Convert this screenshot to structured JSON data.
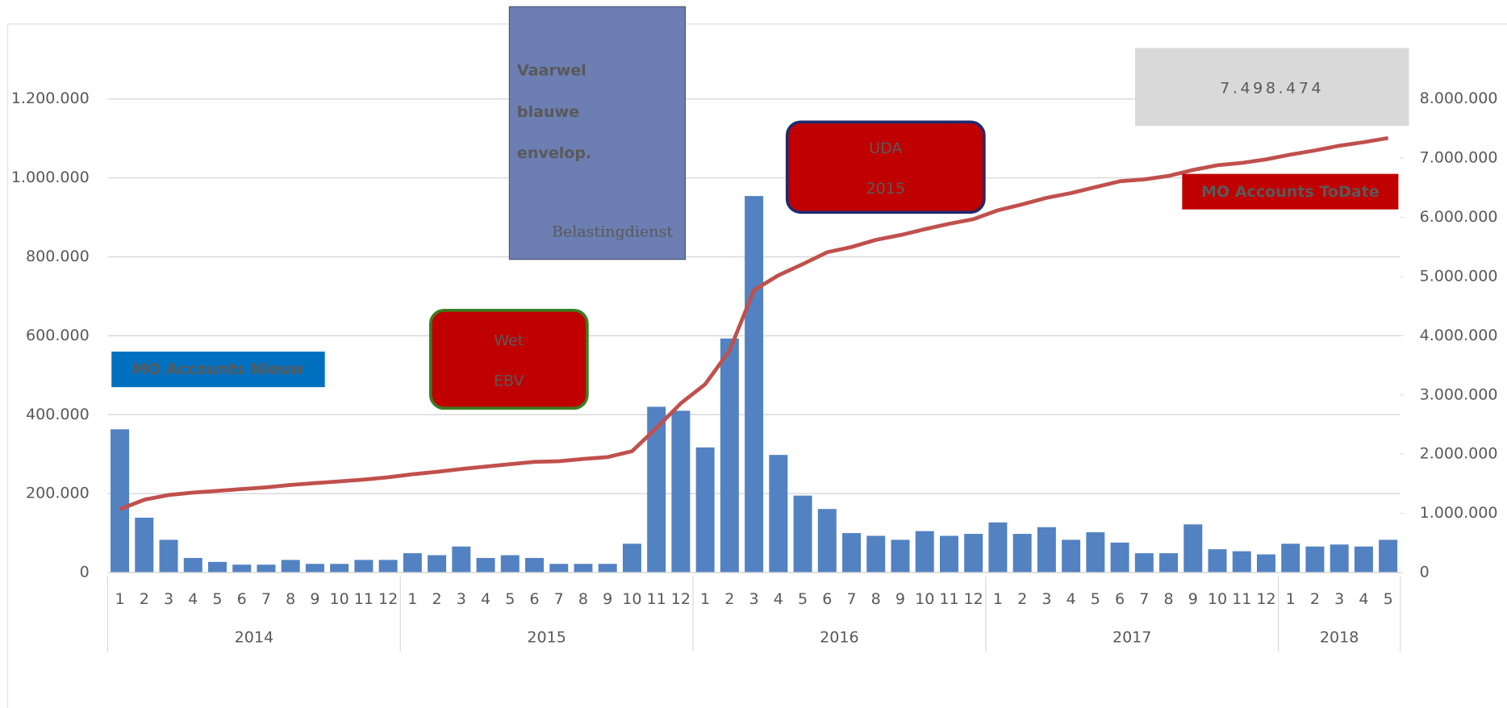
{
  "chart_data": {
    "type": "bar-line",
    "categories": [
      "1",
      "2",
      "3",
      "4",
      "5",
      "6",
      "7",
      "8",
      "9",
      "10",
      "11",
      "12",
      "1",
      "2",
      "3",
      "4",
      "5",
      "6",
      "7",
      "8",
      "9",
      "10",
      "11",
      "12",
      "1",
      "2",
      "3",
      "4",
      "5",
      "6",
      "7",
      "8",
      "9",
      "10",
      "11",
      "12",
      "1",
      "2",
      "3",
      "4",
      "5",
      "6",
      "7",
      "8",
      "9",
      "10",
      "11",
      "12",
      "1",
      "2",
      "3",
      "4",
      "5"
    ],
    "groups": [
      "2014",
      "2015",
      "2016",
      "2017",
      "2018"
    ],
    "series": [
      {
        "name": "MO Accounts Nieuw",
        "type": "bar",
        "color": "#5282c1",
        "label_color": "#0070c0",
        "values": [
          363000,
          139000,
          83000,
          37000,
          27000,
          20000,
          20000,
          32000,
          22000,
          22000,
          32000,
          32000,
          49000,
          44000,
          66000,
          37000,
          44000,
          37000,
          22000,
          22000,
          22000,
          73000,
          420000,
          410000,
          317000,
          593000,
          954000,
          298000,
          195000,
          161000,
          100000,
          93000,
          83000,
          105000,
          93000,
          98000,
          127000,
          98000,
          115000,
          83000,
          102000,
          76000,
          49000,
          49000,
          122000,
          59000,
          54000,
          46000,
          73000,
          66000,
          71000,
          66000,
          83000
        ]
      },
      {
        "name": "MO Accounts ToDate",
        "type": "line",
        "axis": "y2",
        "color": "#c0504d",
        "label_color": "#c00000",
        "values": [
          1070000,
          1230000,
          1310000,
          1350000,
          1380000,
          1410000,
          1440000,
          1480000,
          1510000,
          1540000,
          1570000,
          1610000,
          1660000,
          1700000,
          1750000,
          1790000,
          1830000,
          1870000,
          1880000,
          1920000,
          1950000,
          2050000,
          2440000,
          2860000,
          3180000,
          3750000,
          4770000,
          5020000,
          5210000,
          5410000,
          5500000,
          5620000,
          5700000,
          5800000,
          5890000,
          5970000,
          6120000,
          6220000,
          6330000,
          6410000,
          6510000,
          6610000,
          6640000,
          6700000,
          6800000,
          6880000,
          6920000,
          6980000,
          7060000,
          7130000,
          7210000,
          7270000,
          7340000
        ]
      }
    ],
    "ylim": [
      0,
      1200000
    ],
    "yticks": [
      0,
      {
        "value": 200000,
        "label": "200.000"
      },
      {
        "value": 400000,
        "label": "400.000"
      },
      {
        "value": 600000,
        "label": "600.000"
      },
      {
        "value": 800000,
        "label": "800.000"
      },
      {
        "value": 1000000,
        "label": "1.000.000"
      },
      {
        "value": 1200000,
        "label": "1.200.000"
      }
    ],
    "y2lim": [
      0,
      8000000
    ],
    "y2ticks": [
      0,
      {
        "value": 1000000,
        "label": "1.000.000"
      },
      {
        "value": 2000000,
        "label": "2.000.000"
      },
      {
        "value": 3000000,
        "label": "3.000.000"
      },
      {
        "value": 4000000,
        "label": "4.000.000"
      },
      {
        "value": 5000000,
        "label": "5.000.000"
      },
      {
        "value": 6000000,
        "label": "6.000.000"
      },
      {
        "value": 7000000,
        "label": "7.000.000"
      },
      {
        "value": 8000000,
        "label": "8.000.000"
      }
    ],
    "grid": true,
    "annotations": [
      {
        "lines": [
          "7.498.474"
        ]
      },
      {
        "lines": [
          "Wet",
          "EBV"
        ]
      },
      {
        "lines": [
          "UDA",
          "2015"
        ]
      }
    ],
    "poster": {
      "lines": [
        "Vaarwel",
        "blauwe",
        "envelop."
      ],
      "footer": "Belastingdienst"
    }
  }
}
